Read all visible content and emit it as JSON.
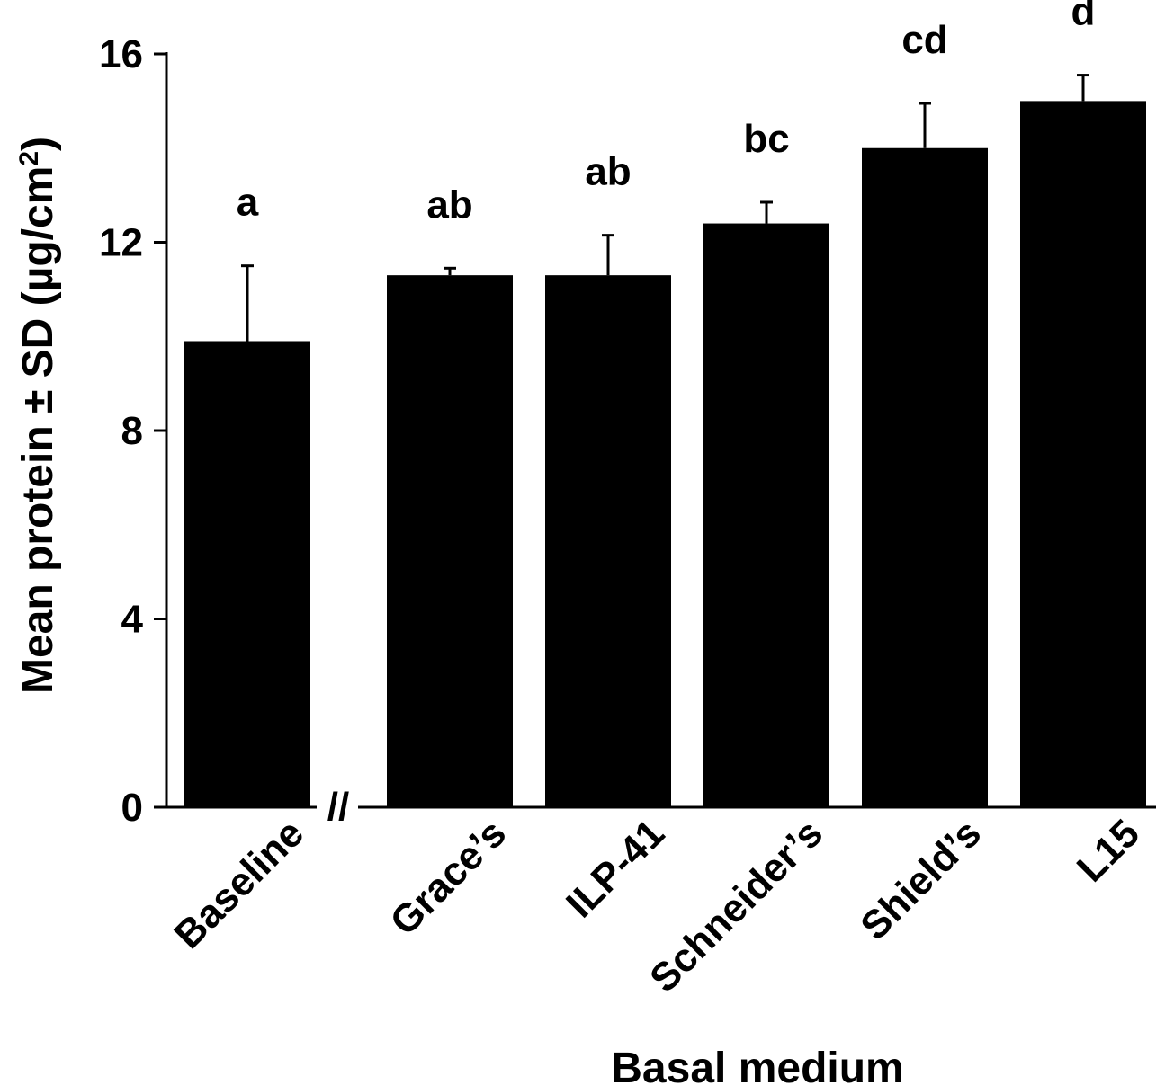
{
  "chart_data": {
    "type": "bar",
    "title": "",
    "xlabel": "Basal medium",
    "ylabel": "Mean protein ± SD (µg/cm",
    "ylabel_superscript": "2",
    "ylabel_suffix": ")",
    "ylim": [
      0,
      16
    ],
    "yticks": [
      0,
      4,
      8,
      12,
      16
    ],
    "grid": false,
    "legend": "none",
    "axis_break_marker": "//",
    "bar_color": "#000000",
    "categories": [
      "Baseline",
      "Grace’s",
      "ILP-41",
      "Schneider’s",
      "Shield’s",
      "L15"
    ],
    "values": [
      9.9,
      11.3,
      11.3,
      12.4,
      14.0,
      15.0
    ],
    "errors": [
      1.6,
      0.15,
      0.85,
      0.45,
      0.95,
      0.55
    ],
    "significance_labels": [
      "a",
      "ab",
      "ab",
      "bc",
      "cd",
      "d"
    ]
  }
}
